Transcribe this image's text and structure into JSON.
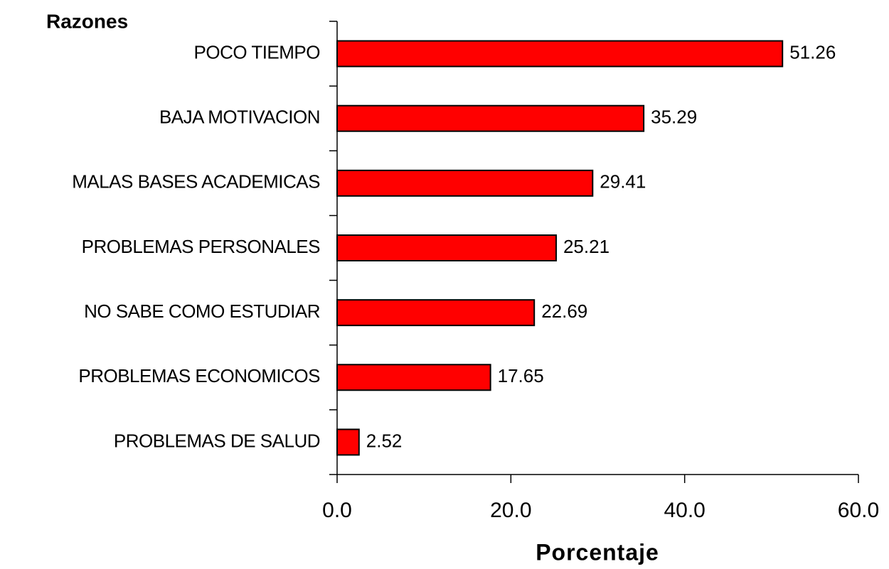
{
  "chart_data": {
    "type": "bar",
    "orientation": "horizontal",
    "y_label": "Razones",
    "x_label": "Porcentaje",
    "categories": [
      "POCO TIEMPO",
      "BAJA MOTIVACION",
      "MALAS BASES ACADEMICAS",
      "PROBLEMAS PERSONALES",
      "NO SABE COMO ESTUDIAR",
      "PROBLEMAS ECONOMICOS",
      "PROBLEMAS DE SALUD"
    ],
    "values": [
      51.26,
      35.29,
      29.41,
      25.21,
      22.69,
      17.65,
      2.52
    ],
    "color": "#ff0000",
    "xlim": [
      0,
      60
    ],
    "xticks": [
      {
        "value": 0,
        "label": "0.0"
      },
      {
        "value": 20,
        "label": "20.0"
      },
      {
        "value": 40,
        "label": "40.0"
      },
      {
        "value": 60,
        "label": "60.0"
      }
    ],
    "grid": false
  }
}
